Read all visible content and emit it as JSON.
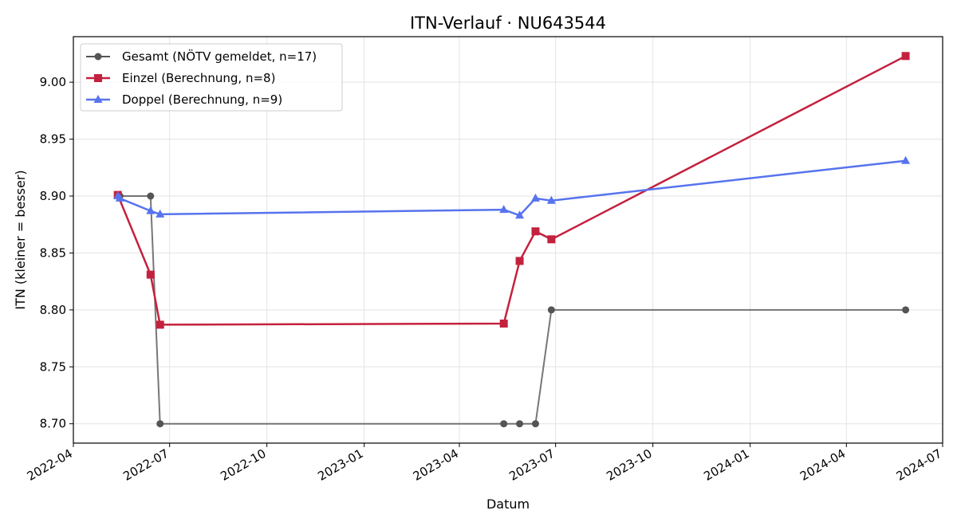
{
  "chart_data": {
    "type": "line",
    "title": "ITN-Verlauf · NU643544",
    "xlabel": "Datum",
    "ylabel": "ITN  (kleiner = besser)",
    "x_axis_type": "date",
    "xlim": [
      "2022-04-01",
      "2024-07-01"
    ],
    "ylim": [
      8.683,
      9.04
    ],
    "x_ticks": [
      "2022-04",
      "2022-07",
      "2022-10",
      "2023-01",
      "2023-04",
      "2023-07",
      "2023-10",
      "2024-01",
      "2024-04",
      "2024-07"
    ],
    "y_ticks": [
      "8.70",
      "8.75",
      "8.80",
      "8.85",
      "8.90",
      "8.95",
      "9.00"
    ],
    "grid": true,
    "legend_position": "top-left",
    "series": [
      {
        "name": "Gesamt (NÖTV gemeldet, n=17)",
        "color": "#555555",
        "marker": "circle",
        "x": [
          "2022-05-13",
          "2022-05-15",
          "2022-06-13",
          "2022-06-22",
          "2023-05-13",
          "2023-05-28",
          "2023-06-12",
          "2023-06-27",
          "2024-05-27"
        ],
        "y": [
          8.9,
          8.9,
          8.9,
          8.7,
          8.7,
          8.7,
          8.7,
          8.8,
          8.8
        ]
      },
      {
        "name": "Einzel (Berechnung, n=8)",
        "color": "#c4213e",
        "marker": "square",
        "x": [
          "2022-05-13",
          "2022-06-13",
          "2022-06-22",
          "2023-05-13",
          "2023-05-28",
          "2023-06-12",
          "2023-06-27",
          "2024-05-27"
        ],
        "y": [
          8.901,
          8.831,
          8.787,
          8.788,
          8.843,
          8.869,
          8.862,
          9.023
        ]
      },
      {
        "name": "Doppel (Berechnung, n=9)",
        "color": "#5773ee",
        "marker": "triangle",
        "x": [
          "2022-05-13",
          "2022-05-15",
          "2022-06-13",
          "2022-06-22",
          "2023-05-13",
          "2023-05-28",
          "2023-06-12",
          "2023-06-27",
          "2024-05-27"
        ],
        "y": [
          8.9,
          8.898,
          8.887,
          8.884,
          8.888,
          8.883,
          8.898,
          8.896,
          8.931
        ]
      }
    ]
  }
}
